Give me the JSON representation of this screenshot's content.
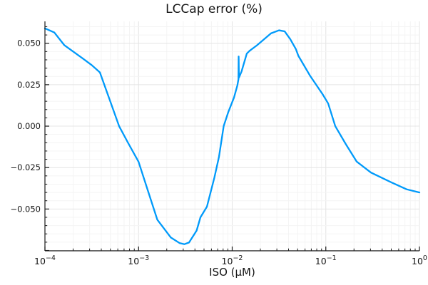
{
  "chart_data": {
    "type": "line",
    "title": "LCCap error (%)",
    "xlabel": "ISO (μM)",
    "ylabel": "",
    "x_scale": "log10",
    "xlim_log10": [
      -4,
      0
    ],
    "ylim": [
      -0.0752,
      0.0632
    ],
    "grid": true,
    "legend": "none",
    "y_minor_step": 0.005,
    "y_major_step": 0.025,
    "xticks": [
      {
        "value_log10": -4,
        "base": "10",
        "exp": "−4"
      },
      {
        "value_log10": -3,
        "base": "10",
        "exp": "−3"
      },
      {
        "value_log10": -2,
        "base": "10",
        "exp": "−2"
      },
      {
        "value_log10": -1,
        "base": "10",
        "exp": "−1"
      },
      {
        "value_log10": 0,
        "base": "10",
        "exp": "0"
      }
    ],
    "yticks": [
      {
        "value": 0.05,
        "label": "0.050"
      },
      {
        "value": 0.025,
        "label": "0.025"
      },
      {
        "value": 0.0,
        "label": "0.000"
      },
      {
        "value": -0.025,
        "label": "−0.025"
      },
      {
        "value": -0.05,
        "label": "−0.050"
      }
    ],
    "series": [
      {
        "name": "LCCap error",
        "color": "#009AFA",
        "points_log10x_y": [
          [
            -4.0,
            0.059
          ],
          [
            -3.9,
            0.0565
          ],
          [
            -3.794,
            0.0489
          ],
          [
            -3.6,
            0.041
          ],
          [
            -3.5,
            0.0368
          ],
          [
            -3.413,
            0.0324
          ],
          [
            -3.299,
            0.0144
          ],
          [
            -3.208,
            0.0
          ],
          [
            -3.109,
            -0.0104
          ],
          [
            -3.0,
            -0.0215
          ],
          [
            -2.9,
            -0.039
          ],
          [
            -2.8,
            -0.0564
          ],
          [
            -2.655,
            -0.0672
          ],
          [
            -2.56,
            -0.0706
          ],
          [
            -2.51,
            -0.0712
          ],
          [
            -2.461,
            -0.0702
          ],
          [
            -2.38,
            -0.063
          ],
          [
            -2.339,
            -0.055
          ],
          [
            -2.27,
            -0.0486
          ],
          [
            -2.19,
            -0.031
          ],
          [
            -2.141,
            -0.0185
          ],
          [
            -2.091,
            0.0
          ],
          [
            -2.041,
            0.0086
          ],
          [
            -1.981,
            0.0172
          ],
          [
            -1.945,
            0.0245
          ],
          [
            -1.933,
            0.0283
          ],
          [
            -1.931,
            0.042
          ],
          [
            -1.928,
            0.0292
          ],
          [
            -1.9,
            0.033
          ],
          [
            -1.844,
            0.0438
          ],
          [
            -1.813,
            0.0455
          ],
          [
            -1.737,
            0.0487
          ],
          [
            -1.699,
            0.0505
          ],
          [
            -1.585,
            0.056
          ],
          [
            -1.5,
            0.0578
          ],
          [
            -1.44,
            0.0572
          ],
          [
            -1.38,
            0.0525
          ],
          [
            -1.32,
            0.0465
          ],
          [
            -1.293,
            0.0424
          ],
          [
            -1.166,
            0.0302
          ],
          [
            -1.036,
            0.0194
          ],
          [
            -0.975,
            0.0137
          ],
          [
            -0.899,
            0.0
          ],
          [
            -0.785,
            -0.011
          ],
          [
            -0.67,
            -0.0214
          ],
          [
            -0.518,
            -0.028
          ],
          [
            -0.29,
            -0.0342
          ],
          [
            -0.137,
            -0.0381
          ],
          [
            0.0,
            -0.04
          ]
        ]
      }
    ],
    "annotations": [
      {
        "type": "spike-artifact",
        "x_log10": -1.93,
        "y_tip": 0.042,
        "note": "thin vertical glitch in curve just right of 10^-2"
      }
    ]
  },
  "colors": {
    "series_blue": "#009AFA",
    "axis": "#1a1a1a",
    "grid_minor": "#f4f4f4",
    "grid_major": "#e4e4e4",
    "background": "#ffffff",
    "text": "#151515"
  }
}
